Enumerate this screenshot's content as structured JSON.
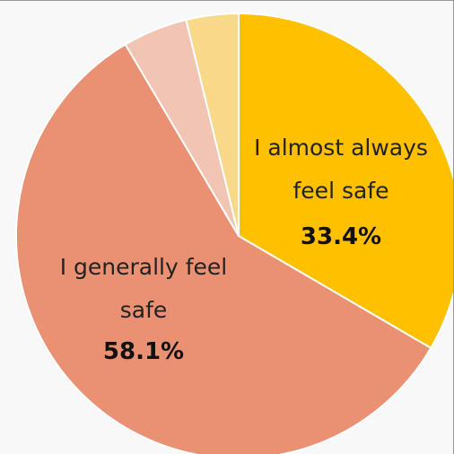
{
  "chart_data": {
    "type": "pie",
    "categories": [
      "I almost always feel safe",
      "I generally feel safe",
      null,
      null
    ],
    "values": [
      33.4,
      58.1,
      4.7,
      3.8
    ],
    "value_labels": [
      "33.4%",
      "58.1%",
      null,
      null
    ],
    "colors": [
      "#ffc000",
      "#eb9173",
      "#f2c4b4",
      "#f8d98a"
    ]
  }
}
